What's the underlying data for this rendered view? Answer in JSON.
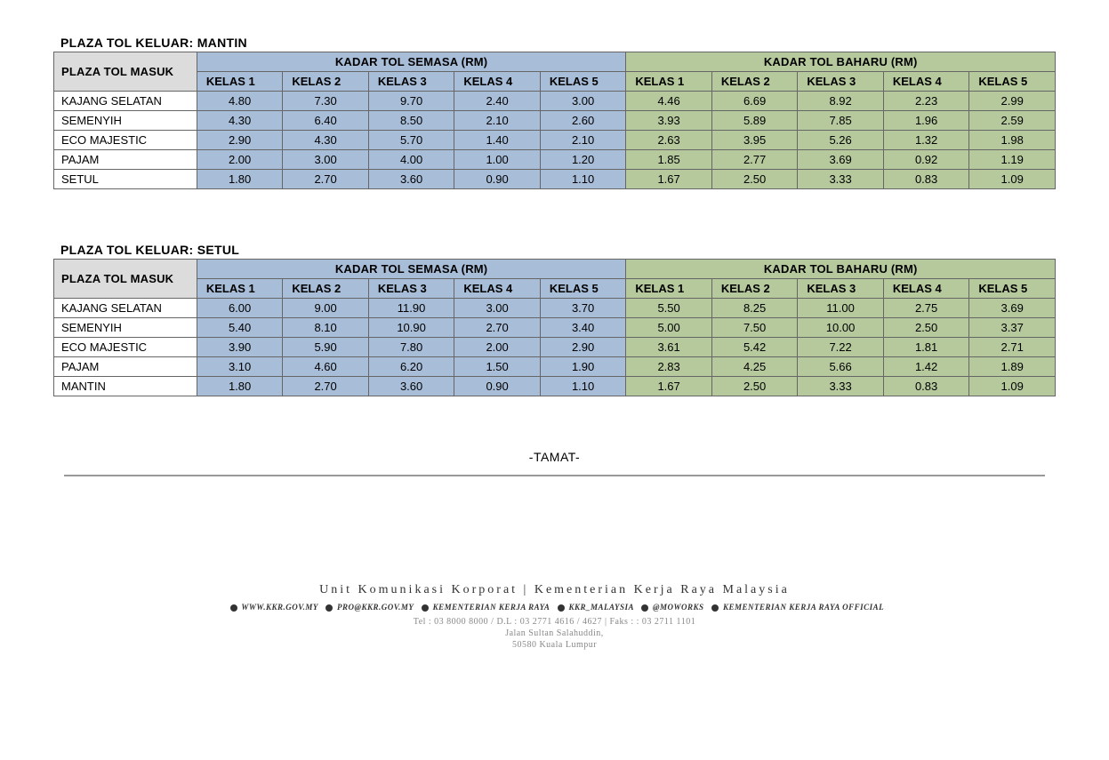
{
  "colors": {
    "semasa_header_bg": "#a8bdd8",
    "baharu_header_bg": "#b6c99d",
    "masuk_header_bg": "#dcdcdc",
    "border": "#666666",
    "background": "#ffffff"
  },
  "typography": {
    "body_font": "Century Gothic",
    "footer_font": "Georgia",
    "title_fontsize": 14,
    "cell_fontsize": 13
  },
  "labels": {
    "masuk": "PLAZA TOL MASUK",
    "semasa": "KADAR TOL SEMASA (RM)",
    "baharu": "KADAR TOL BAHARU (RM)",
    "kelas": [
      "KELAS 1",
      "KELAS 2",
      "KELAS 3",
      "KELAS 4",
      "KELAS 5"
    ],
    "tamat": "-TAMAT-"
  },
  "tables": [
    {
      "title": "PLAZA TOL KELUAR: MANTIN",
      "rows": [
        {
          "label": "KAJANG SELATAN",
          "semasa": [
            "4.80",
            "7.30",
            "9.70",
            "2.40",
            "3.00"
          ],
          "baharu": [
            "4.46",
            "6.69",
            "8.92",
            "2.23",
            "2.99"
          ]
        },
        {
          "label": "SEMENYIH",
          "semasa": [
            "4.30",
            "6.40",
            "8.50",
            "2.10",
            "2.60"
          ],
          "baharu": [
            "3.93",
            "5.89",
            "7.85",
            "1.96",
            "2.59"
          ]
        },
        {
          "label": "ECO MAJESTIC",
          "semasa": [
            "2.90",
            "4.30",
            "5.70",
            "1.40",
            "2.10"
          ],
          "baharu": [
            "2.63",
            "3.95",
            "5.26",
            "1.32",
            "1.98"
          ]
        },
        {
          "label": "PAJAM",
          "semasa": [
            "2.00",
            "3.00",
            "4.00",
            "1.00",
            "1.20"
          ],
          "baharu": [
            "1.85",
            "2.77",
            "3.69",
            "0.92",
            "1.19"
          ]
        },
        {
          "label": "SETUL",
          "semasa": [
            "1.80",
            "2.70",
            "3.60",
            "0.90",
            "1.10"
          ],
          "baharu": [
            "1.67",
            "2.50",
            "3.33",
            "0.83",
            "1.09"
          ]
        }
      ]
    },
    {
      "title": "PLAZA TOL KELUAR: SETUL",
      "rows": [
        {
          "label": "KAJANG SELATAN",
          "semasa": [
            "6.00",
            "9.00",
            "11.90",
            "3.00",
            "3.70"
          ],
          "baharu": [
            "5.50",
            "8.25",
            "11.00",
            "2.75",
            "3.69"
          ]
        },
        {
          "label": "SEMENYIH",
          "semasa": [
            "5.40",
            "8.10",
            "10.90",
            "2.70",
            "3.40"
          ],
          "baharu": [
            "5.00",
            "7.50",
            "10.00",
            "2.50",
            "3.37"
          ]
        },
        {
          "label": "ECO MAJESTIC",
          "semasa": [
            "3.90",
            "5.90",
            "7.80",
            "2.00",
            "2.90"
          ],
          "baharu": [
            "3.61",
            "5.42",
            "7.22",
            "1.81",
            "2.71"
          ]
        },
        {
          "label": "PAJAM",
          "semasa": [
            "3.10",
            "4.60",
            "6.20",
            "1.50",
            "1.90"
          ],
          "baharu": [
            "2.83",
            "4.25",
            "5.66",
            "1.42",
            "1.89"
          ]
        },
        {
          "label": "MANTIN",
          "semasa": [
            "1.80",
            "2.70",
            "3.60",
            "0.90",
            "1.10"
          ],
          "baharu": [
            "1.67",
            "2.50",
            "3.33",
            "0.83",
            "1.09"
          ]
        }
      ]
    }
  ],
  "footer": {
    "org": "Unit Komunikasi Korporat | Kementerian Kerja Raya Malaysia",
    "handles": "WWW.KKR.GOV.MY   PRO@KKR.GOV.MY   KEMENTERIAN KERJA RAYA   KKR_MALAYSIA   @MOWORKS   KEMENTERIAN KERJA RAYA OFFICIAL",
    "contact": "Tel : 03 8000 8000 / D.L : 03 2771 4616 / 4627 | Faks : : 03 2711 1101",
    "addr1": "Jalan Sultan Salahuddin,",
    "addr2": "50580 Kuala Lumpur"
  }
}
